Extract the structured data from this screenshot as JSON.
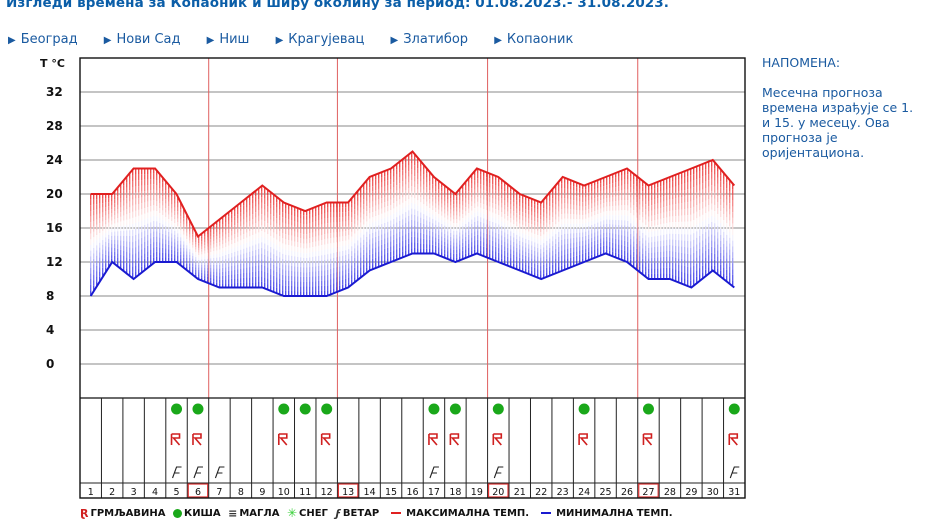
{
  "title": "Изгледи времена за Копаоник и ширу околину за период: 01.08.2023.- 31.08.2023.",
  "nav": [
    "Београд",
    "Нови Сад",
    "Ниш",
    "Крагујевац",
    "Златибор",
    "Копаоник"
  ],
  "note": {
    "title": "НАПОМЕНА:",
    "text": "Месечна прогноза времена израђује се 1. и 15. у месецу. Ова прогноза је оријентациона."
  },
  "legend": {
    "storm": "ГРМЉАВИНА",
    "rain": "КИША",
    "fog": "МАГЛА",
    "snow": "СНЕГ",
    "wind": "ВЕТАР",
    "max": "МАКСИМАЛНА ТЕМП.",
    "min": "МИНИМАЛНА ТЕМП."
  },
  "colors": {
    "max": "#e02020",
    "min": "#1a1ad0",
    "rain": "#1aa81a",
    "storm": "#d02020",
    "accent": "#0b5ea8"
  },
  "chart_data": {
    "type": "line",
    "ylabel": "T °C",
    "ylim": [
      -4,
      36
    ],
    "yticks": [
      0,
      4,
      8,
      12,
      16,
      20,
      24,
      28,
      32
    ],
    "x": [
      1,
      2,
      3,
      4,
      5,
      6,
      7,
      8,
      9,
      10,
      11,
      12,
      13,
      14,
      15,
      16,
      17,
      18,
      19,
      20,
      21,
      22,
      23,
      24,
      25,
      26,
      27,
      28,
      29,
      30,
      31
    ],
    "series": [
      {
        "name": "МАКСИМАЛНА ТЕМП.",
        "color": "#e02020",
        "values": [
          20,
          20,
          23,
          23,
          20,
          15,
          17,
          19,
          21,
          19,
          18,
          19,
          19,
          22,
          23,
          25,
          22,
          20,
          23,
          22,
          20,
          19,
          22,
          21,
          22,
          23,
          21,
          22,
          23,
          24,
          21
        ]
      },
      {
        "name": "МИНИМАЛНА ТЕМП.",
        "color": "#1a1ad0",
        "values": [
          8,
          12,
          10,
          12,
          12,
          10,
          9,
          9,
          9,
          8,
          8,
          8,
          9,
          11,
          12,
          13,
          13,
          12,
          13,
          12,
          11,
          10,
          11,
          12,
          13,
          12,
          10,
          10,
          9,
          11,
          9
        ]
      }
    ],
    "red_gridline_days": [
      7,
      13,
      20,
      27
    ],
    "highlighted_days": [
      6,
      13,
      20,
      27
    ],
    "weather": {
      "rain": [
        5,
        6,
        10,
        11,
        12,
        17,
        18,
        20,
        24,
        27,
        31
      ],
      "storm": [
        5,
        6,
        10,
        12,
        17,
        18,
        20,
        24,
        27,
        31
      ],
      "wind": [
        5,
        6,
        7,
        17,
        20,
        31
      ]
    }
  }
}
